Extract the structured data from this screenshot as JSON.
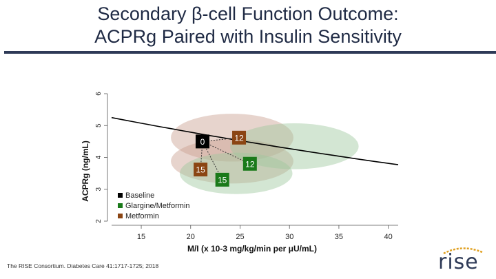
{
  "slide": {
    "title_line1": "Secondary β-cell Function Outcome:",
    "title_line2": "ACPRg Paired with Insulin Sensitivity",
    "citation": "The RISE Consortium. Diabetes Care 41:1717-1725; 2018",
    "logo_text": "rise"
  },
  "chart_data": {
    "type": "scatter",
    "title": "",
    "xlabel": "M/I (x 10-3 mg/kg/min per μU/mL)",
    "ylabel": "ACPRg (ng/mL)",
    "xlim": [
      12,
      41
    ],
    "ylim": [
      2,
      6
    ],
    "xticks": [
      15,
      20,
      25,
      30,
      35,
      40
    ],
    "yticks": [
      2,
      3,
      4,
      5,
      6
    ],
    "hyperbola_curve": {
      "name": "reference curve",
      "color": "#000000",
      "x_start": 12,
      "x_end": 41,
      "y_start": 5.25,
      "y_end": 3.77
    },
    "series": [
      {
        "name": "Baseline",
        "color": "#000000",
        "points": [
          {
            "label": "0",
            "x": 21.2,
            "y": 4.5
          }
        ]
      },
      {
        "name": "Glargine/Metformin",
        "color": "#1a7a1a",
        "points": [
          {
            "label": "12",
            "x": 26.0,
            "y": 3.8
          },
          {
            "label": "15",
            "x": 23.2,
            "y": 3.3
          }
        ]
      },
      {
        "name": "Metformin",
        "color": "#8b4513",
        "points": [
          {
            "label": "12",
            "x": 24.9,
            "y": 4.62
          },
          {
            "label": "15",
            "x": 21.0,
            "y": 3.62
          }
        ]
      }
    ],
    "ellipses": [
      {
        "series": "Baseline",
        "cx": 24.2,
        "cy": 4.62,
        "rx": 6.2,
        "ry": 0.75,
        "color": "#c9a090"
      },
      {
        "series": "Metformin",
        "cx": 24.2,
        "cy": 3.88,
        "rx": 6.2,
        "ry": 0.7,
        "color": "#c9a090"
      },
      {
        "series": "Glargine/Metformin",
        "cx": 30.5,
        "cy": 4.35,
        "rx": 6.5,
        "ry": 0.72,
        "color": "#9ec79e"
      },
      {
        "series": "Glargine/Metformin",
        "cx": 24.6,
        "cy": 3.5,
        "rx": 5.7,
        "ry": 0.65,
        "color": "#9ec79e"
      }
    ],
    "legend": {
      "placement": "bottom-left",
      "entries": [
        {
          "label": "Baseline",
          "color": "#000000"
        },
        {
          "label": "Glargine/Metformin",
          "color": "#1a7a1a"
        },
        {
          "label": "Metformin",
          "color": "#8b4513"
        }
      ]
    }
  }
}
